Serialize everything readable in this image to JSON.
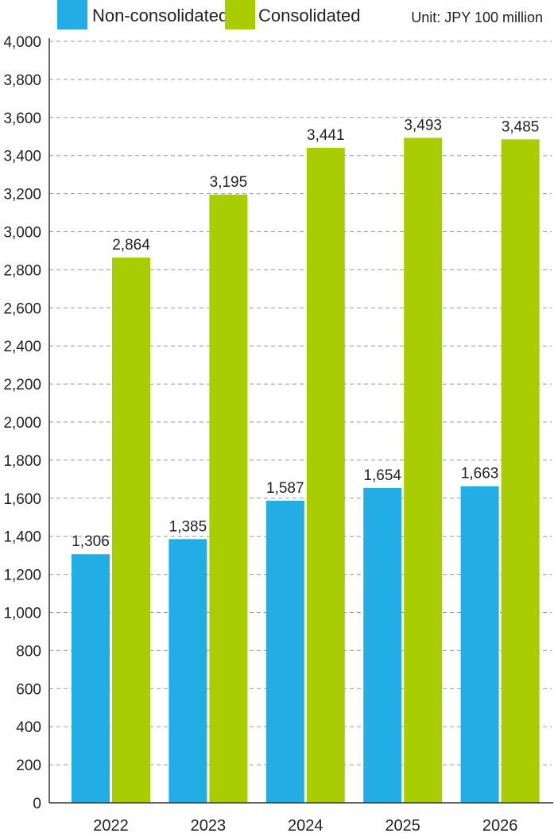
{
  "chart_data": {
    "type": "bar",
    "categories": [
      "2022",
      "2023",
      "2024",
      "2025",
      "2026"
    ],
    "series": [
      {
        "name": "Non-consolidated",
        "color": "#22ade4",
        "values": [
          1306,
          1385,
          1587,
          1654,
          1663
        ],
        "labels": [
          "1,306",
          "1,385",
          "1,587",
          "1,654",
          "1,663"
        ]
      },
      {
        "name": "Consolidated",
        "color": "#aacc03",
        "values": [
          2864,
          3195,
          3441,
          3493,
          3485
        ],
        "labels": [
          "2,864",
          "3,195",
          "3,441",
          "3,493",
          "3,485"
        ]
      }
    ],
    "unit_label": "Unit: JPY 100 million",
    "ylim": [
      0,
      4000
    ],
    "yticks": [
      0,
      200,
      400,
      600,
      800,
      1000,
      1200,
      1400,
      1600,
      1800,
      2000,
      2200,
      2400,
      2600,
      2800,
      3000,
      3200,
      3400,
      3600,
      3800,
      4000
    ],
    "ytick_labels": [
      "0",
      "200",
      "400",
      "600",
      "800",
      "1,000",
      "1,200",
      "1,400",
      "1,600",
      "1,800",
      "2,000",
      "2,200",
      "2,400",
      "2,600",
      "2,800",
      "3,000",
      "3,200",
      "3,400",
      "3,600",
      "3,800",
      "4,000"
    ],
    "grid": true,
    "grid_style": "dashed",
    "legend_position": "top-left",
    "title": "",
    "xlabel": "",
    "ylabel": ""
  }
}
